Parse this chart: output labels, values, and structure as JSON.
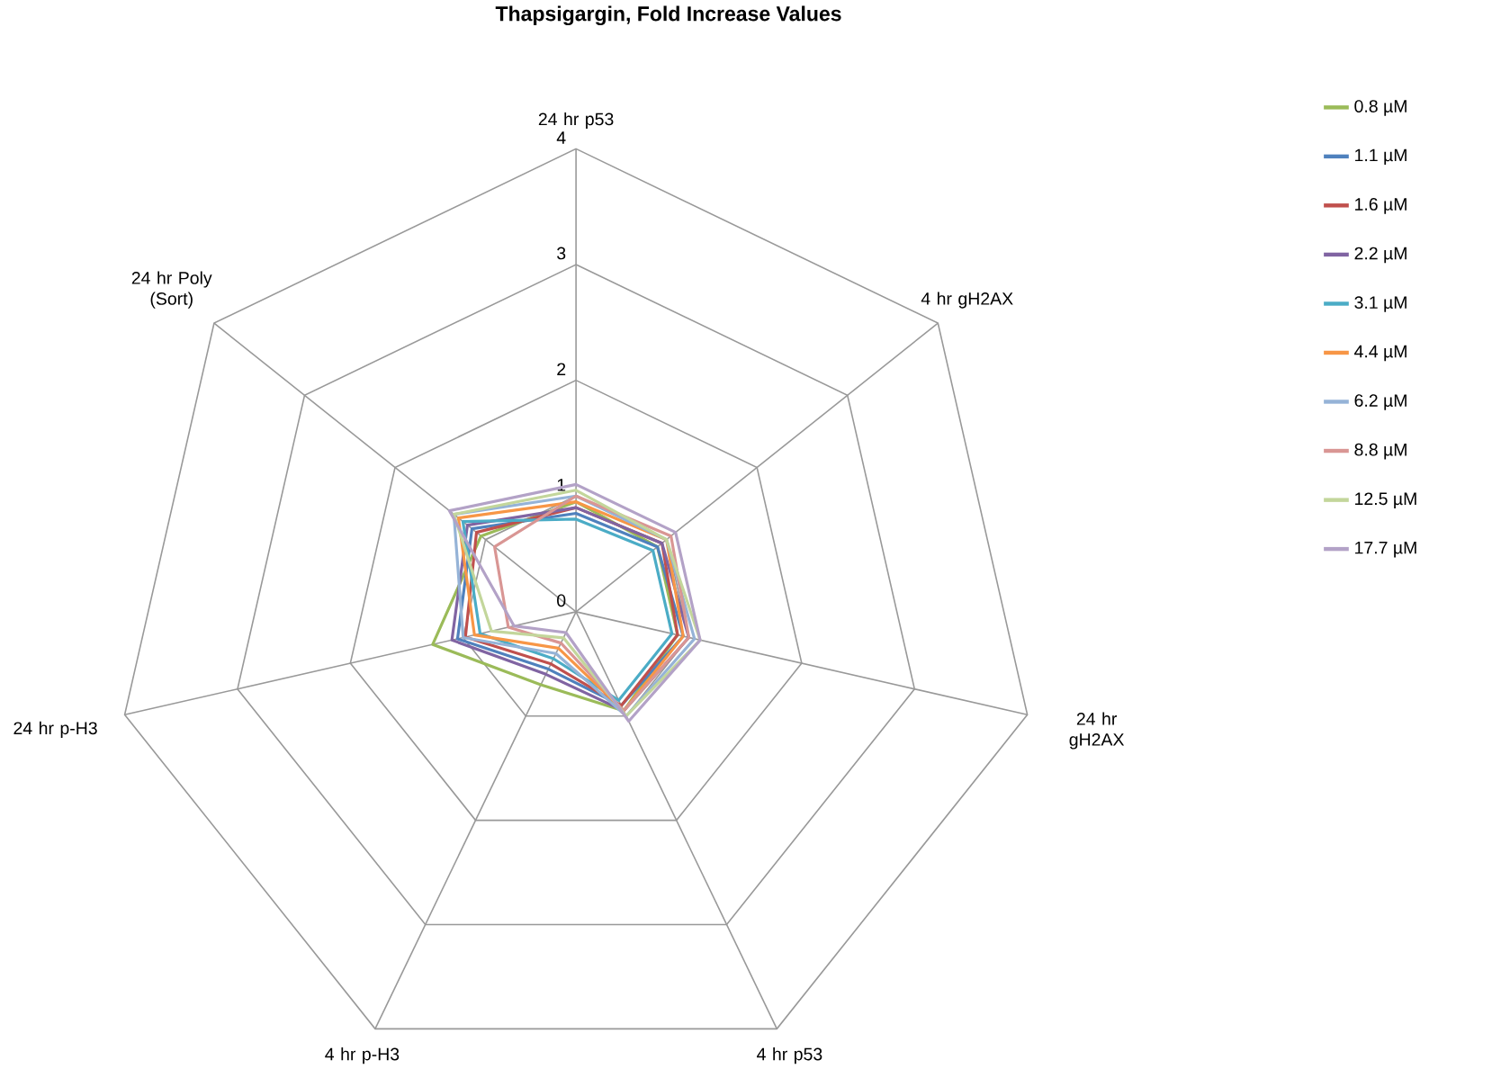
{
  "chart_data": {
    "type": "radar",
    "title": "Thapsigargin, Fold Increase Values",
    "categories": [
      "24 hr p53",
      "4 hr gH2AX",
      "24 hr gH2AX",
      "4 hr p53",
      "4 hr p-H3",
      "24 hr p-H3",
      "24 hr Poly (Sort)"
    ],
    "ylim": [
      0,
      4
    ],
    "yticks": [
      0,
      1,
      2,
      3,
      4
    ],
    "grid": true,
    "legend": "right",
    "marker": "none",
    "series": [
      {
        "name": "0.8 µM",
        "color": "#9bbb59",
        "values": [
          0.95,
          0.9,
          0.9,
          0.95,
          0.7,
          1.27,
          1.05
        ]
      },
      {
        "name": "1.1 µM",
        "color": "#4f81bd",
        "values": [
          0.85,
          0.9,
          0.95,
          0.9,
          0.55,
          1.05,
          1.15
        ]
      },
      {
        "name": "1.6 µM",
        "color": "#c0504d",
        "values": [
          0.9,
          0.95,
          0.9,
          0.9,
          0.5,
          0.98,
          1.1
        ]
      },
      {
        "name": "2.2 µM",
        "color": "#8064a2",
        "values": [
          0.9,
          0.95,
          1.0,
          0.95,
          0.6,
          1.1,
          1.2
        ]
      },
      {
        "name": "3.1 µM",
        "color": "#4bacc6",
        "values": [
          0.8,
          0.85,
          0.85,
          0.85,
          0.45,
          0.85,
          1.25
        ]
      },
      {
        "name": "4.4 µM",
        "color": "#f79646",
        "values": [
          0.95,
          1.0,
          0.95,
          0.95,
          0.35,
          0.9,
          1.3
        ]
      },
      {
        "name": "6.2 µM",
        "color": "#95b3d7",
        "values": [
          1.0,
          1.0,
          1.05,
          1.0,
          0.4,
          1.0,
          1.35
        ]
      },
      {
        "name": "8.8 µM",
        "color": "#d99694",
        "values": [
          1.0,
          1.05,
          1.0,
          0.95,
          0.3,
          0.6,
          0.9
        ]
      },
      {
        "name": "12.5 µM",
        "color": "#c3d69b",
        "values": [
          1.05,
          1.0,
          1.1,
          1.0,
          0.25,
          0.75,
          1.35
        ]
      },
      {
        "name": "17.7 µM",
        "color": "#b3a2c7",
        "values": [
          1.1,
          1.1,
          1.1,
          1.05,
          0.2,
          0.55,
          1.4
        ]
      }
    ]
  }
}
